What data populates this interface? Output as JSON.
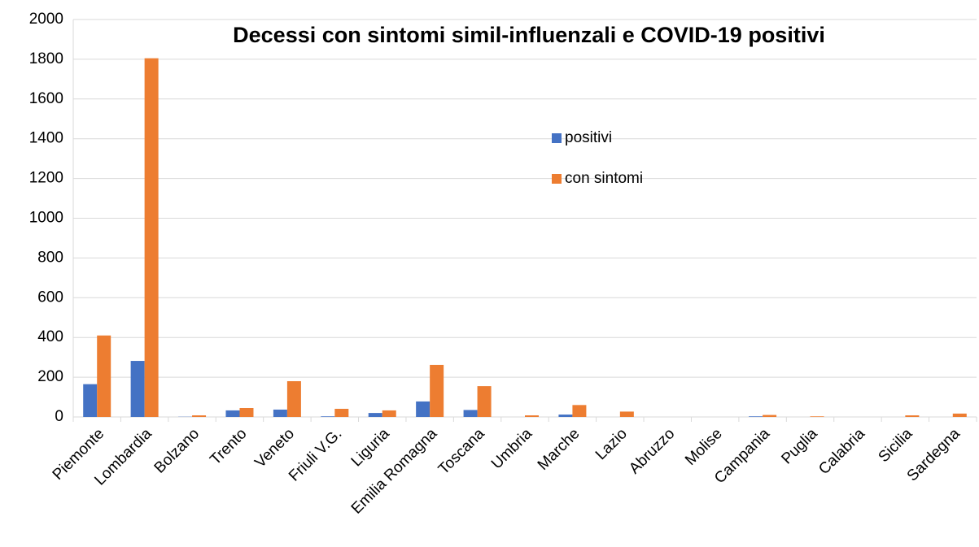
{
  "chart_data": {
    "type": "bar",
    "title": "Decessi con sintomi simil-influenzali e COVID-19 positivi",
    "categories": [
      "Piemonte",
      "Lombardia",
      "Bolzano",
      "Trento",
      "Veneto",
      "Friuli V.G.",
      "Liguria",
      "Emilia Romagna",
      "Toscana",
      "Umbria",
      "Marche",
      "Lazio",
      "Abruzzo",
      "Molise",
      "Campania",
      "Puglia",
      "Calabria",
      "Sicilia",
      "Sardegna"
    ],
    "series": [
      {
        "name": "positivi",
        "color": "#4472c4",
        "values": [
          165,
          282,
          1,
          33,
          37,
          3,
          20,
          78,
          35,
          0,
          12,
          0,
          0,
          0,
          3,
          0,
          0,
          0,
          0
        ]
      },
      {
        "name": "con sintomi",
        "color": "#ed7d31",
        "values": [
          410,
          1805,
          8,
          45,
          180,
          41,
          33,
          262,
          155,
          8,
          60,
          27,
          0,
          0,
          10,
          3,
          0,
          8,
          17
        ]
      }
    ],
    "ylim": [
      0,
      2000
    ],
    "yticks": [
      0,
      200,
      400,
      600,
      800,
      1000,
      1200,
      1400,
      1600,
      1800,
      2000
    ],
    "grid": true
  }
}
